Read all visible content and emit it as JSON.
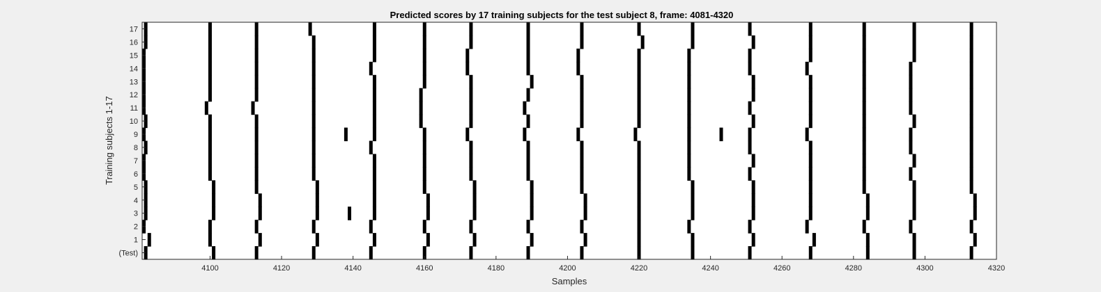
{
  "chart_data": {
    "type": "heatmap",
    "title": "Predicted scores by 17 training subjects for the test subject 8, frame: 4081-4320",
    "xlabel": "Samples",
    "ylabel": "Training subjects 1-17",
    "xlim": [
      4081,
      4320
    ],
    "xticks": [
      4100,
      4120,
      4140,
      4160,
      4180,
      4200,
      4220,
      4240,
      4260,
      4280,
      4300,
      4320
    ],
    "row_labels": [
      "(Test)",
      "1",
      "2",
      "3",
      "4",
      "5",
      "6",
      "7",
      "8",
      "9",
      "10",
      "11",
      "12",
      "13",
      "14",
      "15",
      "16",
      "17"
    ],
    "grid": false,
    "colors": {
      "background": "#ffffff",
      "mark": "#000000",
      "figure": "#f0f0f0"
    },
    "rows": [
      {
        "label": "(Test)",
        "spikes": [
          4082,
          4101,
          4113,
          4129,
          4145,
          4160,
          4173,
          4189,
          4204,
          4220,
          4235,
          4251,
          4268,
          4284,
          4297,
          4313
        ]
      },
      {
        "label": "1",
        "spikes": [
          4083,
          4100,
          4114,
          4130,
          4146,
          4161,
          4174,
          4190,
          4205,
          4220,
          4235,
          4252,
          4269,
          4284,
          4297,
          4314
        ]
      },
      {
        "label": "2",
        "spikes": [
          4081,
          4100,
          4113,
          4129,
          4145,
          4160,
          4173,
          4189,
          4204,
          4220,
          4234,
          4251,
          4267,
          4283,
          4296,
          4313
        ]
      },
      {
        "label": "3",
        "spikes": [
          4082,
          4101,
          4114,
          4130,
          4139,
          4146,
          4161,
          4174,
          4190,
          4205,
          4220,
          4235,
          4252,
          4268,
          4284,
          4297,
          4314
        ]
      },
      {
        "label": "4",
        "spikes": [
          4082,
          4101,
          4114,
          4130,
          4146,
          4161,
          4174,
          4190,
          4205,
          4220,
          4235,
          4252,
          4268,
          4284,
          4297,
          4314
        ]
      },
      {
        "label": "5",
        "spikes": [
          4082,
          4101,
          4113,
          4130,
          4146,
          4160,
          4174,
          4190,
          4204,
          4220,
          4235,
          4252,
          4268,
          4283,
          4297,
          4313
        ]
      },
      {
        "label": "6",
        "spikes": [
          4081,
          4100,
          4113,
          4129,
          4146,
          4160,
          4173,
          4189,
          4204,
          4220,
          4234,
          4251,
          4268,
          4283,
          4296,
          4313
        ]
      },
      {
        "label": "7",
        "spikes": [
          4081,
          4100,
          4113,
          4129,
          4146,
          4160,
          4173,
          4189,
          4204,
          4220,
          4234,
          4252,
          4268,
          4283,
          4297,
          4313
        ]
      },
      {
        "label": "8",
        "spikes": [
          4082,
          4100,
          4113,
          4129,
          4145,
          4160,
          4173,
          4189,
          4204,
          4220,
          4234,
          4251,
          4268,
          4283,
          4296,
          4313
        ]
      },
      {
        "label": "9",
        "spikes": [
          4081,
          4100,
          4113,
          4129,
          4138,
          4146,
          4160,
          4172,
          4188,
          4203,
          4219,
          4234,
          4243,
          4251,
          4267,
          4283,
          4296,
          4313
        ]
      },
      {
        "label": "10",
        "spikes": [
          4082,
          4100,
          4113,
          4129,
          4146,
          4159,
          4173,
          4189,
          4204,
          4220,
          4234,
          4252,
          4268,
          4283,
          4297,
          4313
        ]
      },
      {
        "label": "11",
        "spikes": [
          4080,
          4099,
          4112,
          4129,
          4146,
          4159,
          4173,
          4188,
          4204,
          4220,
          4234,
          4251,
          4268,
          4283,
          4296,
          4313
        ]
      },
      {
        "label": "12",
        "spikes": [
          4081,
          4100,
          4113,
          4129,
          4146,
          4159,
          4173,
          4189,
          4204,
          4220,
          4234,
          4252,
          4268,
          4283,
          4296,
          4313
        ]
      },
      {
        "label": "13",
        "spikes": [
          4081,
          4100,
          4113,
          4129,
          4146,
          4160,
          4173,
          4190,
          4204,
          4220,
          4234,
          4252,
          4268,
          4283,
          4296,
          4313
        ]
      },
      {
        "label": "14",
        "spikes": [
          4081,
          4100,
          4113,
          4129,
          4145,
          4160,
          4172,
          4189,
          4203,
          4220,
          4234,
          4251,
          4267,
          4283,
          4296,
          4313
        ]
      },
      {
        "label": "15",
        "spikes": [
          4081,
          4100,
          4113,
          4129,
          4146,
          4160,
          4172,
          4189,
          4203,
          4220,
          4234,
          4251,
          4268,
          4283,
          4297,
          4313
        ]
      },
      {
        "label": "16",
        "spikes": [
          4082,
          4100,
          4113,
          4129,
          4146,
          4160,
          4173,
          4189,
          4204,
          4221,
          4235,
          4252,
          4268,
          4283,
          4297,
          4313
        ]
      },
      {
        "label": "17",
        "spikes": [
          4082,
          4100,
          4113,
          4128,
          4146,
          4160,
          4173,
          4189,
          4204,
          4220,
          4235,
          4251,
          4268,
          4283,
          4297,
          4313
        ]
      }
    ]
  }
}
